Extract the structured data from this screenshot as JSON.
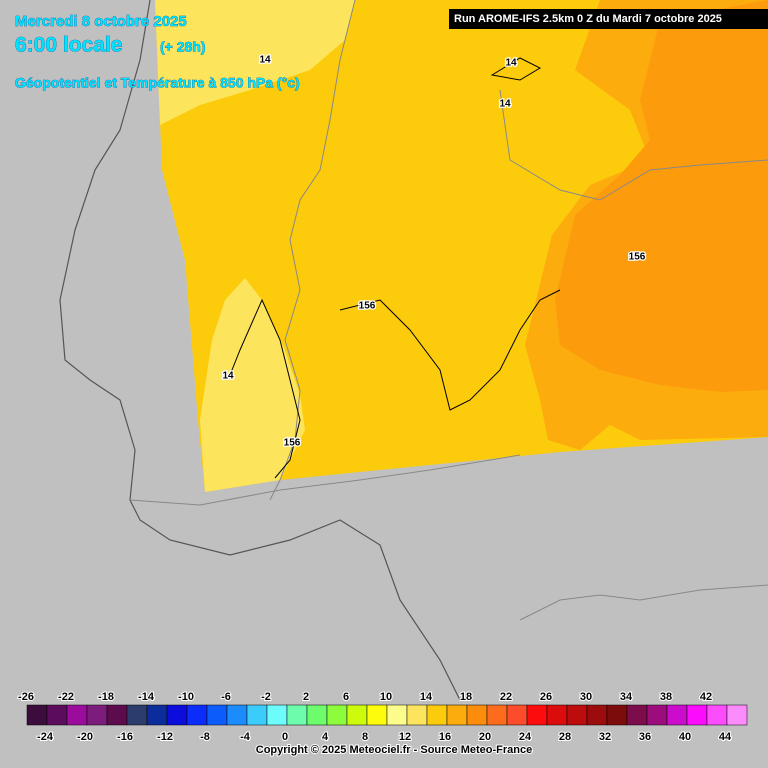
{
  "header": {
    "date": "Mercredi 8 octobre 2025",
    "time": "6:00 locale",
    "lead": "(+ 28h)",
    "parameter": "Géopotentiel et Température à 850 hPa (°c)",
    "run": "Run AROME-IFS 2.5km 0 Z du Mardi 7 octobre 2025"
  },
  "contour_labels": [
    14,
    14,
    14,
    14,
    156,
    156,
    156
  ],
  "legend": {
    "colors": [
      "#3c0c3c",
      "#5c0c5c",
      "#9c0c9c",
      "#7c1c7c",
      "#5c0c4c",
      "#2c3c6c",
      "#0c2c9c",
      "#0c0cdc",
      "#0c2cfc",
      "#0c5cfc",
      "#1c8cfc",
      "#3cccfc",
      "#6cfcfc",
      "#6cfcac",
      "#6cfc6c",
      "#8cfc3c",
      "#ccfc0c",
      "#fcfc0c",
      "#fcfc8c",
      "#fce45c",
      "#fccc0c",
      "#fcac0c",
      "#fc8c0c",
      "#fc6c1c",
      "#fc4c2c",
      "#fc0c0c",
      "#dc0c0c",
      "#bc0c0c",
      "#9c0c0c",
      "#7c0c0c",
      "#7c0c4c",
      "#9c0c7c",
      "#cc0ccc",
      "#fc0cfc",
      "#fc4cfc",
      "#fc8cfc"
    ],
    "top_labels": [
      -26,
      -22,
      -18,
      -14,
      -10,
      -6,
      -2,
      2,
      6,
      10,
      14,
      18,
      22,
      26,
      30,
      34,
      38,
      42
    ],
    "bottom_labels": [
      -24,
      -20,
      -16,
      -12,
      -8,
      -4,
      0,
      4,
      8,
      12,
      16,
      20,
      24,
      28,
      32,
      36,
      40,
      44
    ]
  },
  "footer": {
    "copyright": "Copyright © 2025 Meteociel.fr - Source Meteo-France"
  }
}
